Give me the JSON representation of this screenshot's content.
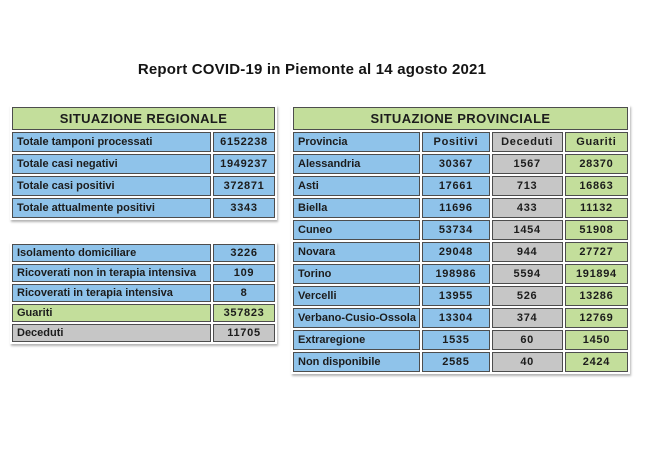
{
  "title": "Report COVID-19 in Piemonte al 14 agosto 2021",
  "colors": {
    "green": "#c3de9b",
    "blue": "#8fc3ea",
    "gray": "#c6c6c6",
    "border": "#4d4d4d",
    "text": "#1c1c1c"
  },
  "regional": {
    "header": "SITUAZIONE REGIONALE",
    "rows": [
      {
        "label": "Totale tamponi processati",
        "value": "6152238",
        "color": "blue"
      },
      {
        "label": "Totale casi negativi",
        "value": "1949237",
        "color": "blue"
      },
      {
        "label": "Totale casi positivi",
        "value": "372871",
        "color": "blue"
      },
      {
        "label": "Totale attualmente positivi",
        "value": "3343",
        "color": "blue"
      }
    ]
  },
  "situation": {
    "rows": [
      {
        "label": "Isolamento domiciliare",
        "value": "3226",
        "color": "blue"
      },
      {
        "label": "Ricoverati non in terapia intensiva",
        "value": "109",
        "color": "blue"
      },
      {
        "label": "Ricoverati in terapia intensiva",
        "value": "8",
        "color": "blue"
      },
      {
        "label": "Guariti",
        "value": "357823",
        "color": "green"
      },
      {
        "label": "Deceduti",
        "value": "11705",
        "color": "gray"
      }
    ]
  },
  "provincial": {
    "header": "SITUAZIONE PROVINCIALE",
    "columns": [
      "Provincia",
      "Positivi",
      "Deceduti",
      "Guariti"
    ],
    "column_colors": [
      "blue",
      "blue",
      "gray",
      "green"
    ],
    "rows": [
      [
        "Alessandria",
        "30367",
        "1567",
        "28370"
      ],
      [
        "Asti",
        "17661",
        "713",
        "16863"
      ],
      [
        "Biella",
        "11696",
        "433",
        "11132"
      ],
      [
        "Cuneo",
        "53734",
        "1454",
        "51908"
      ],
      [
        "Novara",
        "29048",
        "944",
        "27727"
      ],
      [
        "Torino",
        "198986",
        "5594",
        "191894"
      ],
      [
        "Vercelli",
        "13955",
        "526",
        "13286"
      ],
      [
        "Verbano-Cusio-Ossola",
        "13304",
        "374",
        "12769"
      ],
      [
        "Extraregione",
        "1535",
        "60",
        "1450"
      ],
      [
        "Non disponibile",
        "2585",
        "40",
        "2424"
      ]
    ]
  }
}
